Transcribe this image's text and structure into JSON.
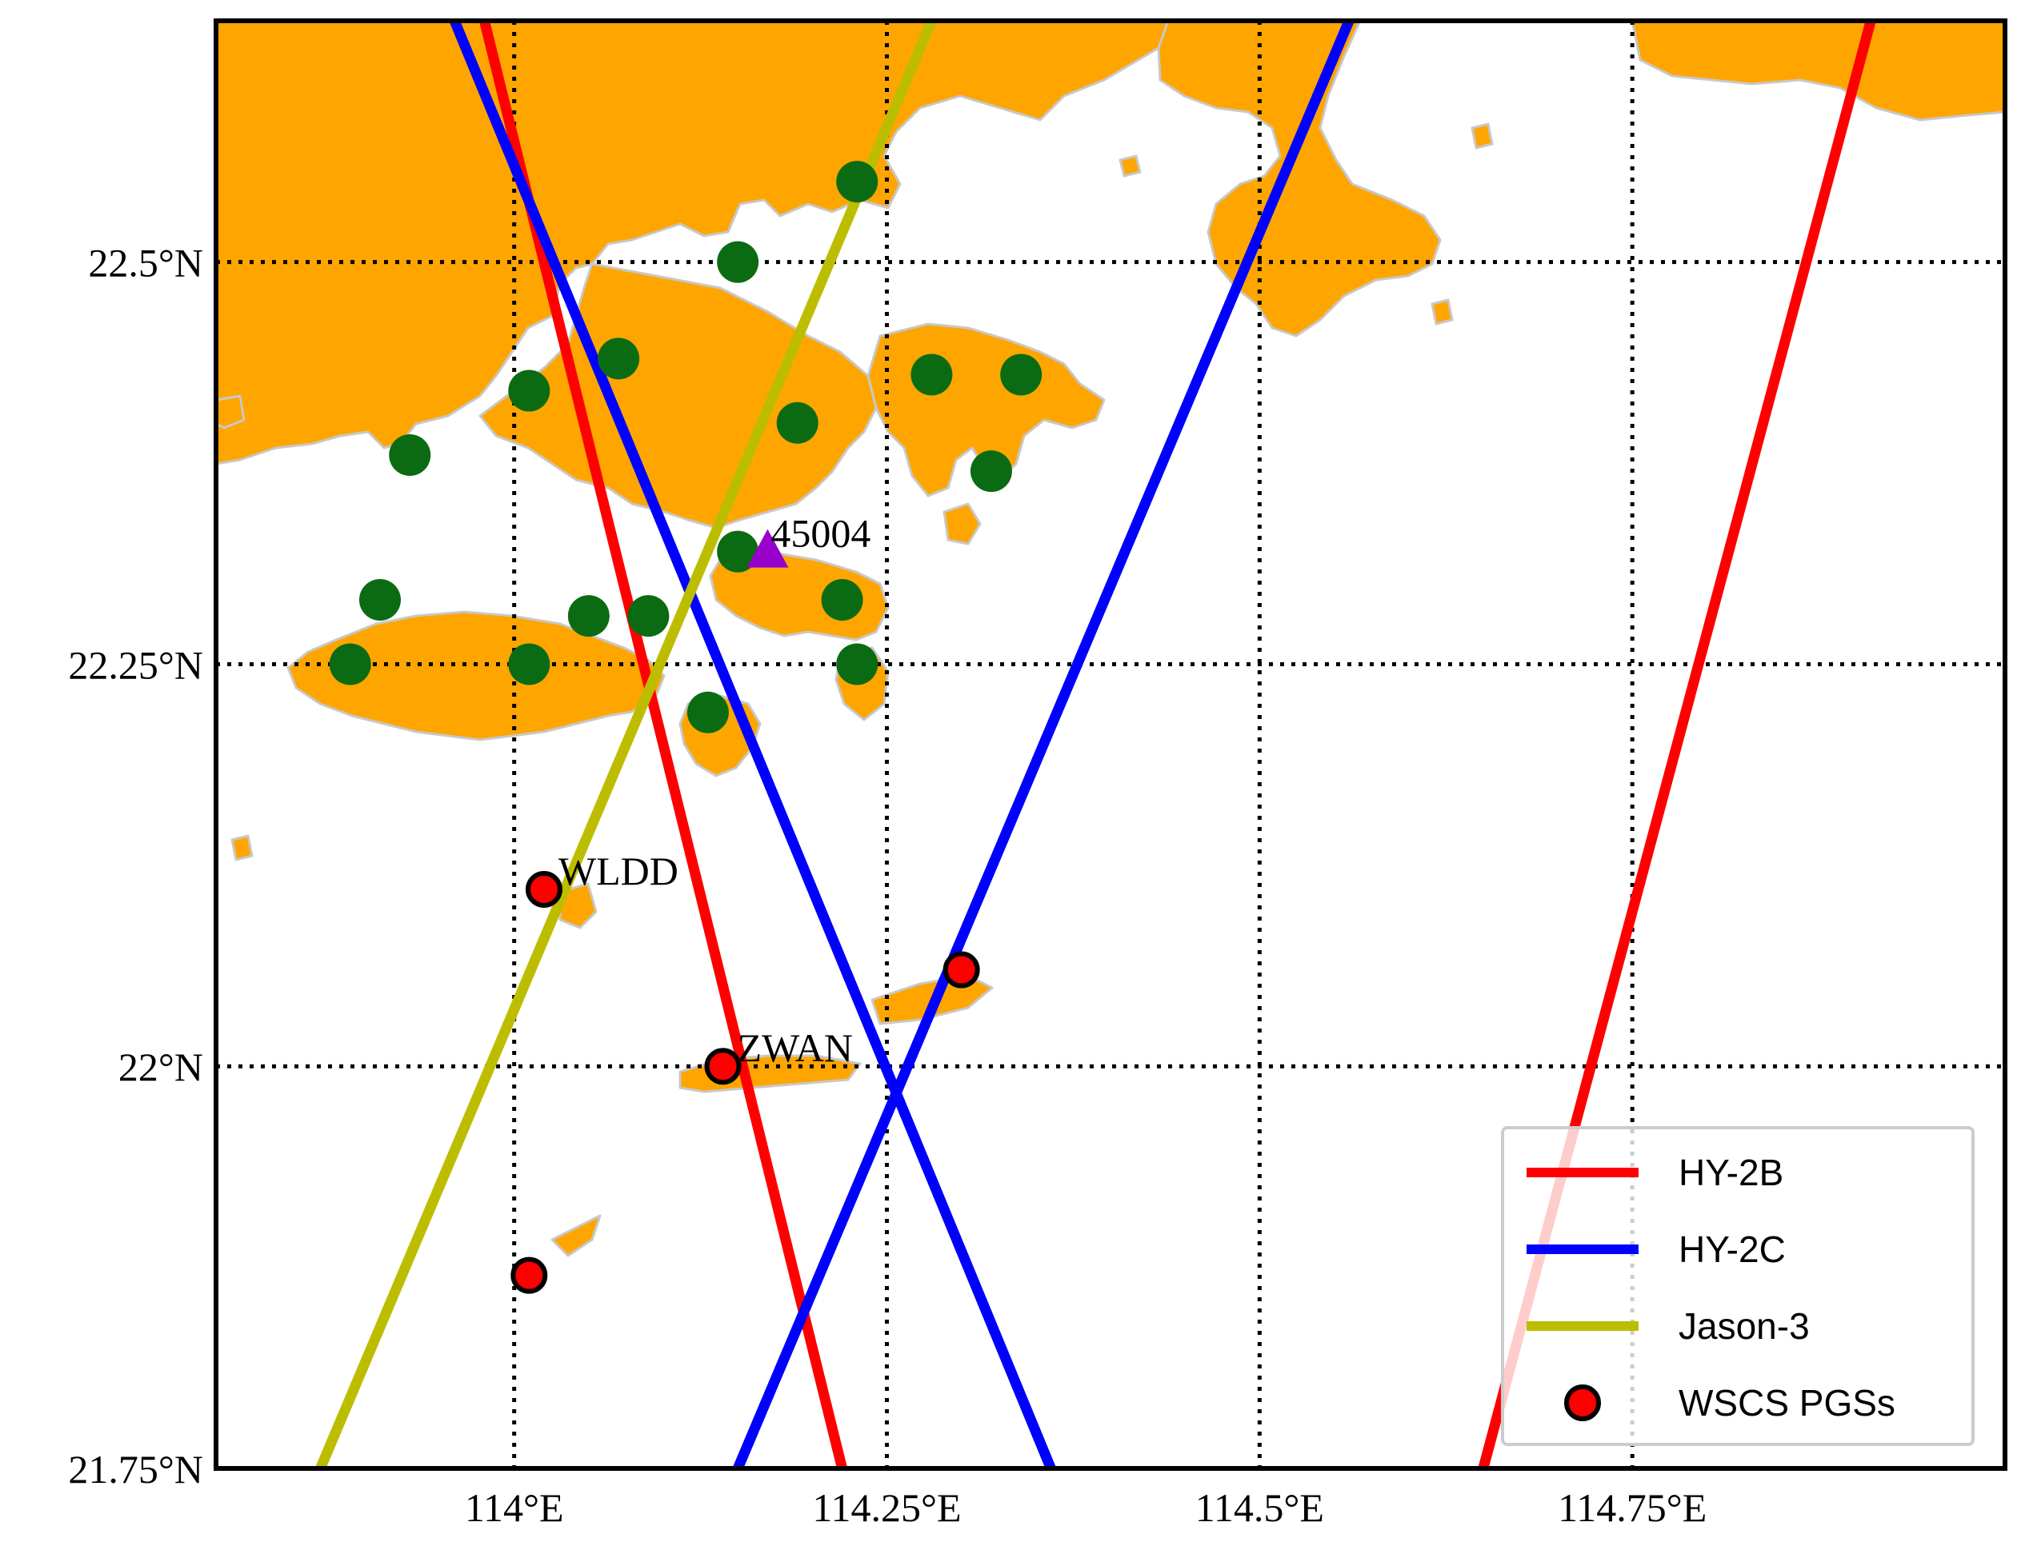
{
  "map": {
    "extent": {
      "lon_min": 113.8,
      "lon_max": 115.0,
      "lat_min": 21.75,
      "lat_max": 22.65
    },
    "land_color": "#FFA500",
    "coast_color": "#c8c8c8",
    "lon_ticks": [
      {
        "value": 114.0,
        "label": "114°E"
      },
      {
        "value": 114.25,
        "label": "114.25°E"
      },
      {
        "value": 114.5,
        "label": "114.5°E"
      },
      {
        "value": 114.75,
        "label": "114.75°E"
      }
    ],
    "lat_ticks": [
      {
        "value": 22.5,
        "label": "22.5°N"
      },
      {
        "value": 22.25,
        "label": "22.25°N"
      },
      {
        "value": 22.0,
        "label": "22°N"
      },
      {
        "value": 21.75,
        "label": "21.75°N"
      }
    ],
    "grid": "dotted"
  },
  "tracks": [
    {
      "name": "HY-2B",
      "color": "#FF0000",
      "points": [
        [
          113.98,
          22.65
        ],
        [
          114.22,
          21.75
        ]
      ]
    },
    {
      "name": "HY-2B",
      "color": "#FF0000",
      "points": [
        [
          114.91,
          22.65
        ],
        [
          114.65,
          21.75
        ]
      ]
    },
    {
      "name": "HY-2C",
      "color": "#0000FF",
      "points": [
        [
          113.96,
          22.65
        ],
        [
          114.36,
          21.75
        ]
      ]
    },
    {
      "name": "HY-2C",
      "color": "#0000FF",
      "points": [
        [
          114.56,
          22.65
        ],
        [
          114.15,
          21.75
        ]
      ]
    },
    {
      "name": "Jason-3",
      "color": "#BDBD00",
      "points": [
        [
          114.28,
          22.65
        ],
        [
          113.87,
          21.75
        ]
      ]
    }
  ],
  "green_stations": {
    "color": "#0B6B12",
    "points": [
      [
        114.23,
        22.55
      ],
      [
        114.15,
        22.5
      ],
      [
        114.07,
        22.44
      ],
      [
        114.01,
        22.42
      ],
      [
        113.93,
        22.38
      ],
      [
        114.19,
        22.4
      ],
      [
        114.28,
        22.43
      ],
      [
        114.34,
        22.43
      ],
      [
        114.32,
        22.37
      ],
      [
        114.15,
        22.32
      ],
      [
        113.91,
        22.29
      ],
      [
        114.05,
        22.28
      ],
      [
        114.09,
        22.28
      ],
      [
        114.22,
        22.29
      ],
      [
        113.89,
        22.25
      ],
      [
        114.01,
        22.25
      ],
      [
        114.23,
        22.25
      ],
      [
        114.13,
        22.22
      ]
    ]
  },
  "buoy": {
    "label": "45004",
    "lon": 114.17,
    "lat": 22.32,
    "color": "#9900CC"
  },
  "pgs_stations": [
    {
      "label": "WLDD",
      "lon": 114.02,
      "lat": 22.11
    },
    {
      "label": "",
      "lon": 114.3,
      "lat": 22.06
    },
    {
      "label": "ZWAN",
      "lon": 114.14,
      "lat": 22.0
    },
    {
      "label": "",
      "lon": 114.01,
      "lat": 21.87
    }
  ],
  "legend": {
    "items": [
      {
        "label": "HY-2B",
        "kind": "line",
        "color": "#FF0000"
      },
      {
        "label": "HY-2C",
        "kind": "line",
        "color": "#0000FF"
      },
      {
        "label": "Jason-3",
        "kind": "line",
        "color": "#BDBD00"
      },
      {
        "label": "WSCS PGSs",
        "kind": "marker",
        "color": "#FF0000"
      }
    ]
  }
}
